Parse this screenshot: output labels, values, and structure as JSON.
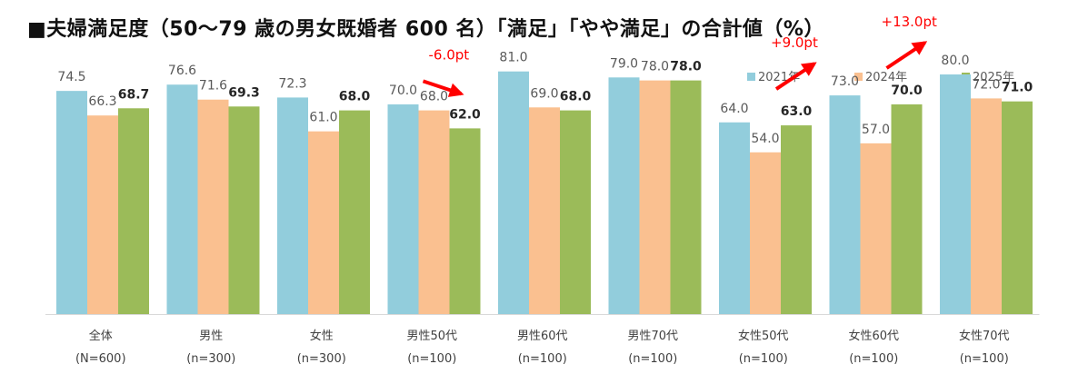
{
  "title": "■夫婦満足度（50～79 歳の男女既婚者 600 名）「満足」「やや満足」の合計値（%）",
  "chart_data": {
    "type": "bar",
    "categories": [
      {
        "name": "全体",
        "n": "(N=600)"
      },
      {
        "name": "男性",
        "n": "(n=300)"
      },
      {
        "name": "女性",
        "n": "(n=300)"
      },
      {
        "name": "男性50代",
        "n": "(n=100)"
      },
      {
        "name": "男性60代",
        "n": "(n=100)"
      },
      {
        "name": "男性70代",
        "n": "(n=100)"
      },
      {
        "name": "女性50代",
        "n": "(n=100)"
      },
      {
        "name": "女性60代",
        "n": "(n=100)"
      },
      {
        "name": "女性70代",
        "n": "(n=100)"
      }
    ],
    "series": [
      {
        "name": "2021年",
        "color": "#92cddc",
        "values": [
          74.5,
          76.6,
          72.3,
          70.0,
          81.0,
          79.0,
          64.0,
          73.0,
          80.0
        ]
      },
      {
        "name": "2024年",
        "color": "#fac090",
        "values": [
          66.3,
          71.6,
          61.0,
          68.0,
          69.0,
          78.0,
          54.0,
          57.0,
          72.0
        ]
      },
      {
        "name": "2025年",
        "color": "#9bbb59",
        "values": [
          68.7,
          69.3,
          68.0,
          62.0,
          68.0,
          78.0,
          63.0,
          70.0,
          71.0
        ]
      }
    ],
    "ylim": [
      0,
      100
    ],
    "legend_position": "top-right",
    "grid": false,
    "annotations": [
      {
        "text": "-6.0pt",
        "category_index": 3,
        "direction": "down"
      },
      {
        "text": "+9.0pt",
        "category_index": 6,
        "direction": "up"
      },
      {
        "text": "+13.0pt",
        "category_index": 7,
        "direction": "up"
      }
    ],
    "annotation_color": "#ff0000"
  }
}
